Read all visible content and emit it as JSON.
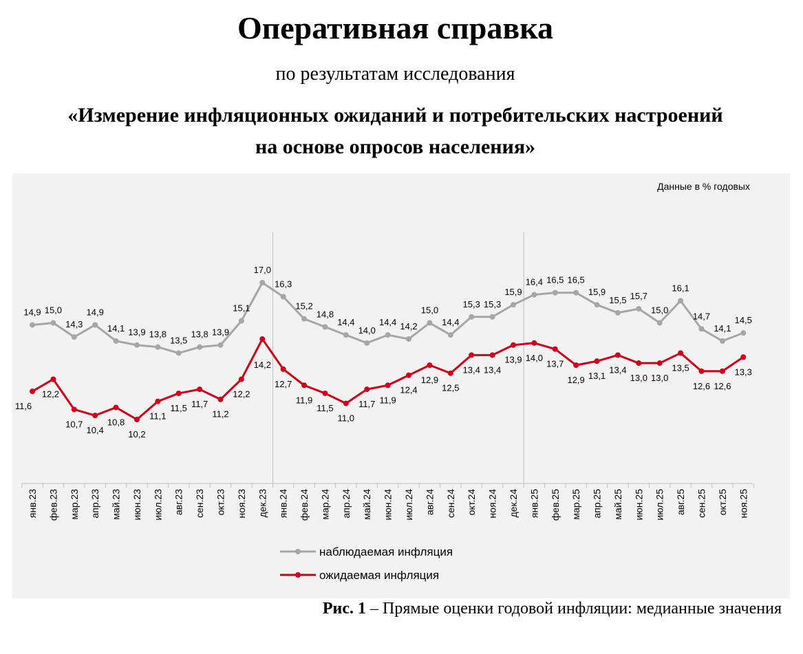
{
  "header": {
    "title": "Оперативная справка",
    "subtitle": "по результатам исследования",
    "study_line1": "«Измерение инфляционных ожиданий и потребительских настроений",
    "study_line2": "на основе опросов населения»"
  },
  "caption": {
    "label": "Рис. 1",
    "text": " – Прямые оценки годовой инфляции: медианные значения"
  },
  "chart_data": {
    "type": "line",
    "units_note": "Данные в % годовых",
    "categories": [
      "янв.23",
      "фев.23",
      "мар.23",
      "апр.23",
      "май.23",
      "июн.23",
      "июл.23",
      "авг.23",
      "сен.23",
      "окт.23",
      "ноя.23",
      "дек.23",
      "янв.24",
      "фев.24",
      "мар.24",
      "апр.24",
      "май.24",
      "июн.24",
      "июл.24",
      "авг.24",
      "сен.24",
      "окт.24",
      "ноя.24",
      "дек.24",
      "янв.25",
      "фев.25",
      "мар.25",
      "апр.25",
      "май.25",
      "июн.25",
      "июл.25",
      "авг.25",
      "сен.25",
      "окт.25",
      "ноя.25"
    ],
    "series": [
      {
        "name": "наблюдаемая инфляция",
        "color": "#a6a6a6",
        "values": [
          14.9,
          15.0,
          14.3,
          14.9,
          14.1,
          13.9,
          13.8,
          13.5,
          13.8,
          13.9,
          15.1,
          17.0,
          16.3,
          15.2,
          14.8,
          14.4,
          14.0,
          14.4,
          14.2,
          15.0,
          14.4,
          15.3,
          15.3,
          15.9,
          16.4,
          16.5,
          16.5,
          15.9,
          15.5,
          15.7,
          15.0,
          16.1,
          14.7,
          14.1,
          14.5
        ],
        "labels": [
          "14,9",
          "15,0",
          "14,3",
          "14,9",
          "14,1",
          "13,9",
          "13,8",
          "13,5",
          "13,8",
          "13,9",
          "15,1",
          "17,0",
          "16,3",
          "15,2",
          "14,8",
          "14,4",
          "14,0",
          "14,4",
          "14,2",
          "15,0",
          "14,4",
          "15,3",
          "15,3",
          "15,9",
          "16,4",
          "16,5",
          "16,5",
          "15,9",
          "15,5",
          "15,7",
          "15,0",
          "16,1",
          "14,7",
          "14,1",
          "14,5"
        ]
      },
      {
        "name": "ожидаемая инфляция",
        "color": "#d0021b",
        "values": [
          11.6,
          12.2,
          10.7,
          10.4,
          10.8,
          10.2,
          11.1,
          11.5,
          11.7,
          11.2,
          12.2,
          14.2,
          12.7,
          11.9,
          11.5,
          11.0,
          11.7,
          11.9,
          12.4,
          12.9,
          12.5,
          13.4,
          13.4,
          13.9,
          14.0,
          13.7,
          12.9,
          13.1,
          13.4,
          13.0,
          13.0,
          13.5,
          12.6,
          12.6,
          13.3
        ],
        "labels": [
          "11,6",
          "12,2",
          "10,7",
          "10,4",
          "10,8",
          "10,2",
          "11,1",
          "11,5",
          "11,7",
          "11,2",
          "12,2",
          "14,2",
          "12,7",
          "11,9",
          "11,5",
          "11,0",
          "11,7",
          "11,9",
          "12,4",
          "12,9",
          "12,5",
          "13,4",
          "13,4",
          "13,9",
          "14,0",
          "13,7",
          "12,9",
          "13,1",
          "13,4",
          "13,0",
          "13,0",
          "13,5",
          "12,6",
          "12,6",
          "13,3"
        ]
      }
    ],
    "year_separators_after": [
      "дек.23",
      "дек.24"
    ],
    "grid": false,
    "legend_position": "bottom-left"
  }
}
